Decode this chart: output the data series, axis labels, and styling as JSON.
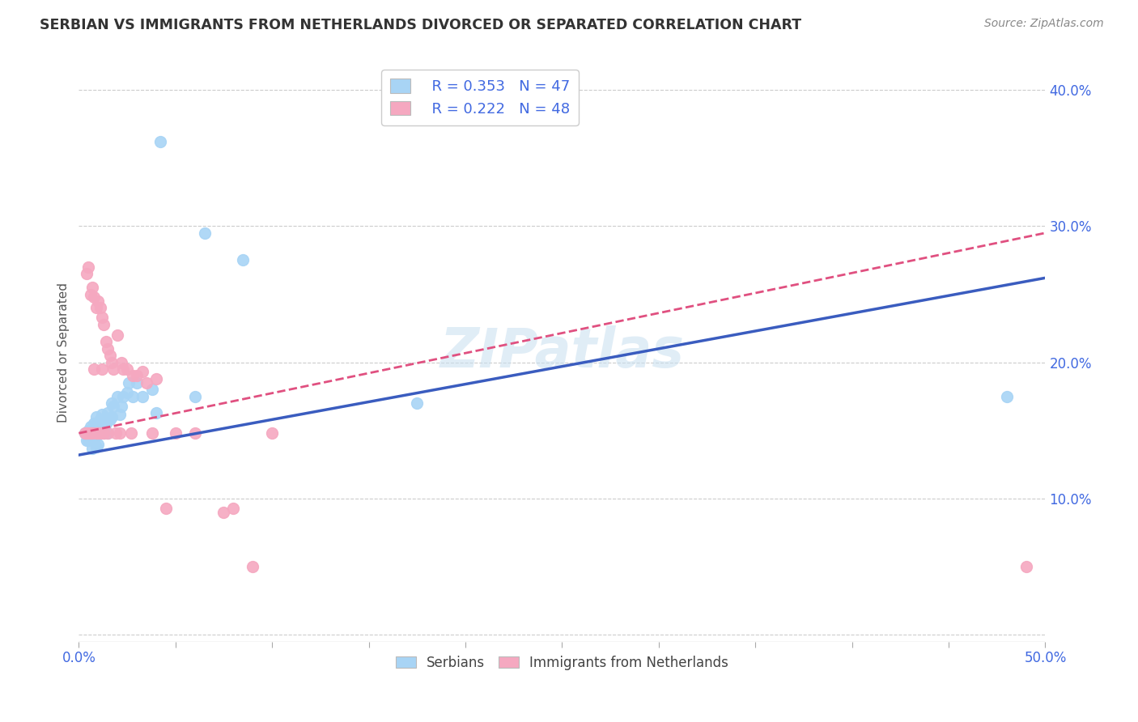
{
  "title": "SERBIAN VS IMMIGRANTS FROM NETHERLANDS DIVORCED OR SEPARATED CORRELATION CHART",
  "source": "Source: ZipAtlas.com",
  "ylabel": "Divorced or Separated",
  "xlim": [
    0.0,
    0.5
  ],
  "ylim": [
    -0.005,
    0.42
  ],
  "yticks": [
    0.0,
    0.1,
    0.2,
    0.3,
    0.4
  ],
  "ytick_labels": [
    "",
    "10.0%",
    "20.0%",
    "30.0%",
    "40.0%"
  ],
  "legend_r1": "R = 0.353",
  "legend_n1": "N = 47",
  "legend_r2": "R = 0.222",
  "legend_n2": "N = 48",
  "blue_color": "#a8d4f5",
  "pink_color": "#f5a8c0",
  "blue_line_color": "#3a5cbf",
  "pink_line_color": "#e05080",
  "watermark": "ZIPatlas",
  "blue_line_start_y": 0.132,
  "blue_line_end_y": 0.262,
  "pink_line_start_y": 0.148,
  "pink_line_end_y": 0.295,
  "serbians_x": [
    0.003,
    0.004,
    0.005,
    0.005,
    0.006,
    0.006,
    0.007,
    0.007,
    0.007,
    0.008,
    0.008,
    0.009,
    0.009,
    0.009,
    0.01,
    0.01,
    0.01,
    0.011,
    0.011,
    0.012,
    0.012,
    0.013,
    0.013,
    0.014,
    0.015,
    0.015,
    0.016,
    0.017,
    0.017,
    0.018,
    0.02,
    0.021,
    0.022,
    0.023,
    0.025,
    0.026,
    0.028,
    0.03,
    0.033,
    0.038,
    0.04,
    0.042,
    0.06,
    0.065,
    0.085,
    0.175,
    0.48
  ],
  "serbians_y": [
    0.148,
    0.143,
    0.15,
    0.143,
    0.148,
    0.153,
    0.148,
    0.143,
    0.137,
    0.155,
    0.143,
    0.16,
    0.148,
    0.138,
    0.155,
    0.148,
    0.14,
    0.158,
    0.148,
    0.162,
    0.152,
    0.158,
    0.148,
    0.155,
    0.163,
    0.148,
    0.158,
    0.17,
    0.16,
    0.168,
    0.175,
    0.162,
    0.168,
    0.175,
    0.178,
    0.185,
    0.175,
    0.185,
    0.175,
    0.18,
    0.163,
    0.362,
    0.175,
    0.295,
    0.275,
    0.17,
    0.175
  ],
  "netherlands_x": [
    0.003,
    0.004,
    0.004,
    0.005,
    0.005,
    0.006,
    0.006,
    0.007,
    0.007,
    0.008,
    0.008,
    0.009,
    0.009,
    0.01,
    0.01,
    0.011,
    0.011,
    0.012,
    0.012,
    0.013,
    0.013,
    0.014,
    0.015,
    0.015,
    0.016,
    0.017,
    0.018,
    0.019,
    0.02,
    0.021,
    0.022,
    0.023,
    0.025,
    0.027,
    0.028,
    0.03,
    0.033,
    0.035,
    0.038,
    0.04,
    0.045,
    0.05,
    0.06,
    0.075,
    0.08,
    0.09,
    0.1,
    0.49
  ],
  "netherlands_y": [
    0.148,
    0.265,
    0.148,
    0.27,
    0.148,
    0.25,
    0.148,
    0.255,
    0.148,
    0.248,
    0.195,
    0.24,
    0.148,
    0.245,
    0.148,
    0.24,
    0.148,
    0.233,
    0.195,
    0.228,
    0.148,
    0.215,
    0.21,
    0.148,
    0.205,
    0.2,
    0.195,
    0.148,
    0.22,
    0.148,
    0.2,
    0.195,
    0.195,
    0.148,
    0.19,
    0.19,
    0.193,
    0.185,
    0.148,
    0.188,
    0.093,
    0.148,
    0.148,
    0.09,
    0.093,
    0.05,
    0.148,
    0.05
  ]
}
